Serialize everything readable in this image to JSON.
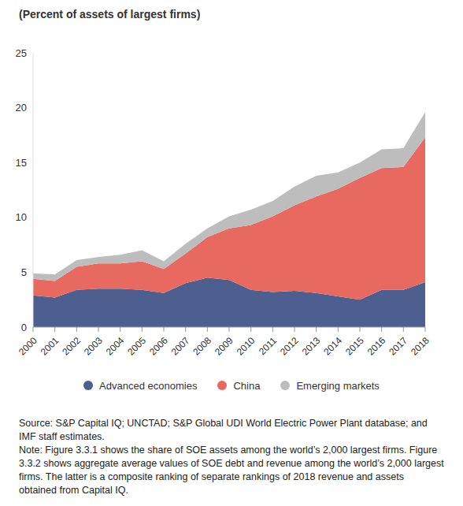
{
  "chart_data": {
    "type": "area",
    "title": "(Percent of assets of largest firms)",
    "stacked": true,
    "categories": [
      "2000",
      "2001",
      "2002",
      "2003",
      "2004",
      "2005",
      "2006",
      "2007",
      "2008",
      "2009",
      "2010",
      "2011",
      "2012",
      "2013",
      "2014",
      "2015",
      "2016",
      "2017",
      "2018"
    ],
    "series": [
      {
        "name": "Advanced economies",
        "color": "#4d5f8f",
        "values": [
          2.9,
          2.7,
          3.4,
          3.5,
          3.5,
          3.4,
          3.1,
          4.0,
          4.5,
          4.3,
          3.4,
          3.2,
          3.3,
          3.1,
          2.8,
          2.5,
          3.4,
          3.4,
          4.1
        ]
      },
      {
        "name": "China",
        "color": "#e8695f",
        "values": [
          1.5,
          1.5,
          2.1,
          2.3,
          2.3,
          2.6,
          2.2,
          2.7,
          3.7,
          4.7,
          5.9,
          6.9,
          7.8,
          8.8,
          9.8,
          11.1,
          11.1,
          11.2,
          13.2
        ]
      },
      {
        "name": "Emerging markets",
        "color": "#bdbdbd",
        "values": [
          0.5,
          0.6,
          0.6,
          0.6,
          0.8,
          1.0,
          0.7,
          0.9,
          0.8,
          1.1,
          1.4,
          1.4,
          1.7,
          1.9,
          1.5,
          1.4,
          1.7,
          1.7,
          2.3
        ]
      }
    ],
    "ylim": [
      0,
      25
    ],
    "yticks": [
      0,
      5,
      10,
      15,
      20,
      25
    ],
    "grid": false,
    "legend": "bottom",
    "source": "Source: S&P Capital IQ; UNCTAD; S&P Global UDI World Electric Power Plant database; and IMF staff estimates.",
    "note": "Note: Figure 3.3.1 shows the share of SOE assets among the world’s 2,000 largest firms. Figure 3.3.2 shows aggregate average values of SOE debt and revenue among the world’s 2,000 largest firms. The latter is a composite ranking of separate rankings of 2018 revenue and assets obtained from Capital IQ."
  }
}
